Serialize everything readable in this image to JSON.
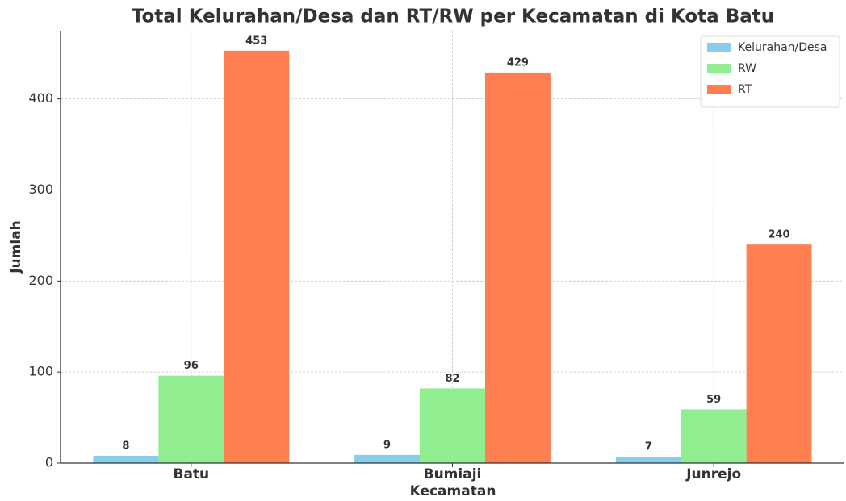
{
  "chart_data": {
    "type": "bar",
    "title": "Total Kelurahan/Desa dan RT/RW per Kecamatan di Kota Batu",
    "x_label": "Kecamatan",
    "y_label": "Jumlah",
    "categories": [
      "Batu",
      "Bumiaji",
      "Junrejo"
    ],
    "series": [
      {
        "name": "Kelurahan/Desa",
        "color": "#87ceeb",
        "values": [
          8,
          9,
          7
        ]
      },
      {
        "name": "RW",
        "color": "#90ee90",
        "values": [
          96,
          82,
          59
        ]
      },
      {
        "name": "RT",
        "color": "#ff7f50",
        "values": [
          453,
          429,
          240
        ]
      }
    ],
    "ylim": [
      0,
      475
    ],
    "yticks": [
      0,
      100,
      200,
      300,
      400
    ],
    "grid": true,
    "legend": "upper right"
  }
}
